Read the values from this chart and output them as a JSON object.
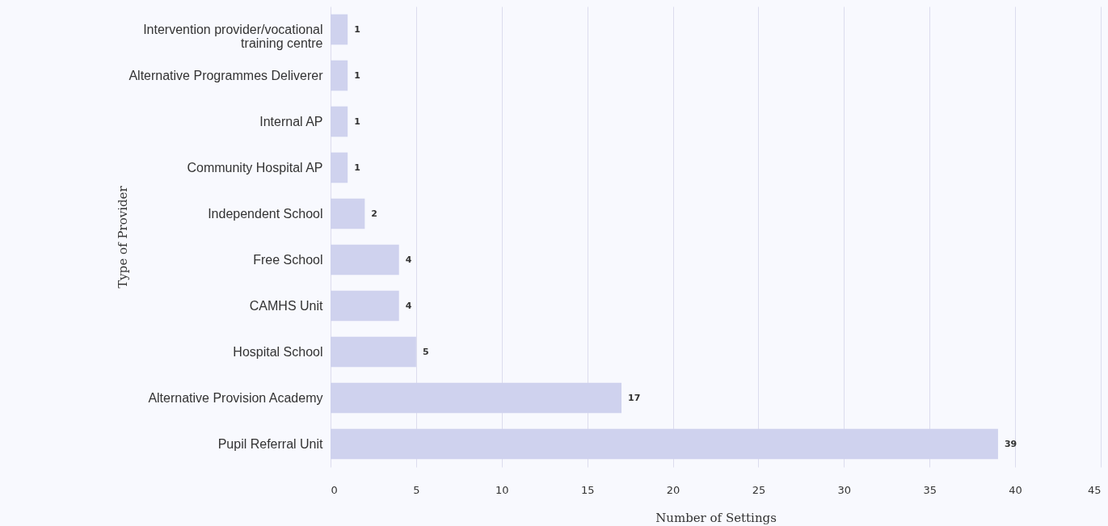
{
  "chart_data": {
    "type": "bar",
    "orientation": "horizontal",
    "xlabel": "Number of Settings",
    "ylabel": "Type of Provider",
    "categories": [
      "Intervention provider/vocational training centre",
      "Alternative Programmes Deliverer",
      "Internal AP",
      "Community Hospital AP",
      "Independent School",
      "Free School",
      "CAMHS Unit",
      "Hospital School",
      "Alternative Provision Academy",
      "Pupil Referral Unit"
    ],
    "values": [
      1,
      1,
      1,
      1,
      2,
      4,
      4,
      5,
      17,
      39
    ],
    "color": "#cfd2ee",
    "xlim": [
      0,
      45
    ],
    "xticks": [
      0,
      5,
      10,
      15,
      20,
      25,
      30,
      35,
      40,
      45
    ],
    "grid": "x",
    "data_labels": true
  }
}
